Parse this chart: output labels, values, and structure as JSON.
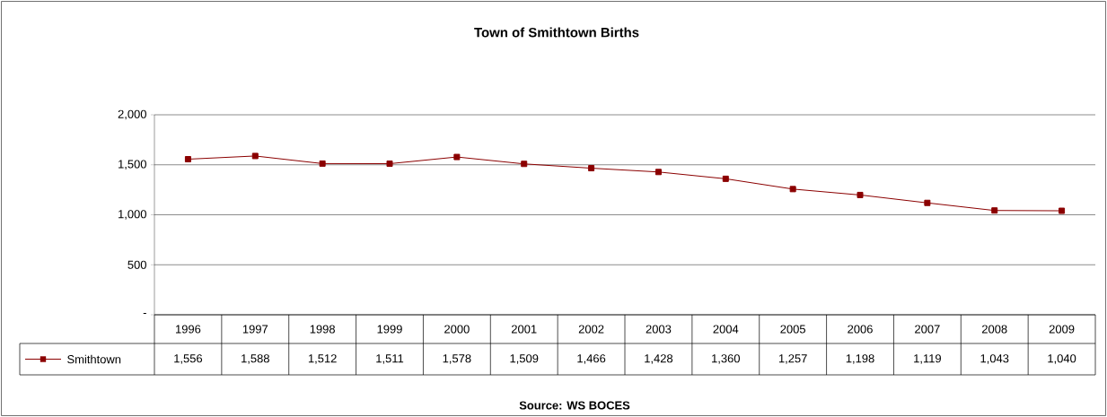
{
  "chart_data": {
    "type": "line",
    "title": "Town of Smithtown Births",
    "categories": [
      "1996",
      "1997",
      "1998",
      "1999",
      "2000",
      "2001",
      "2002",
      "2003",
      "2004",
      "2005",
      "2006",
      "2007",
      "2008",
      "2009"
    ],
    "series": [
      {
        "name": "Smithtown",
        "color": "#8b0000",
        "values": [
          1556,
          1588,
          1512,
          1511,
          1578,
          1509,
          1466,
          1428,
          1360,
          1257,
          1198,
          1119,
          1043,
          1040
        ],
        "value_labels": [
          "1,556",
          "1,588",
          "1,512",
          "1,511",
          "1,578",
          "1,509",
          "1,466",
          "1,428",
          "1,360",
          "1,257",
          "1,198",
          "1,119",
          "1,043",
          "1,040"
        ]
      }
    ],
    "ylim": [
      0,
      2000
    ],
    "yticks": [
      {
        "value": 0,
        "label": "-"
      },
      {
        "value": 500,
        "label": "500"
      },
      {
        "value": 1000,
        "label": "1,000"
      },
      {
        "value": 1500,
        "label": "1,500"
      },
      {
        "value": 2000,
        "label": "2,000"
      }
    ],
    "grid": "y",
    "legend": "bottom left",
    "marker": "square",
    "line_style": "solid",
    "annotations": [
      "Source:  WS BOCES"
    ]
  }
}
